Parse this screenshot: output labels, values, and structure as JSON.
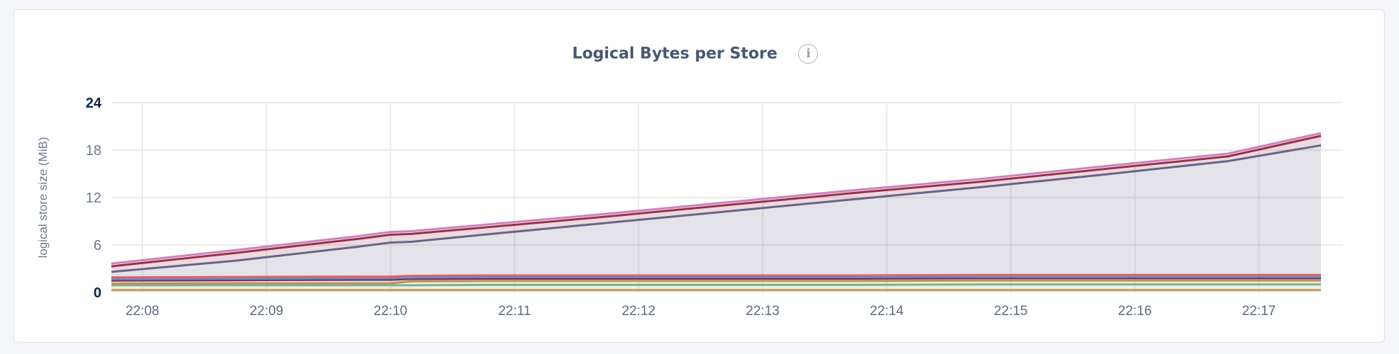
{
  "title": "Logical Bytes per Store",
  "info_icon": "info-circle-icon",
  "chart_data": {
    "type": "area",
    "stacked": true,
    "title": "Logical Bytes per Store",
    "ylabel": "logical store size (MiB)",
    "xlabel": "",
    "ylim": [
      0,
      24
    ],
    "yticks": [
      "0",
      "6",
      "12",
      "18",
      "24"
    ],
    "xticks": [
      "22:08",
      "22:09",
      "22:10",
      "22:11",
      "22:12",
      "22:13",
      "22:14",
      "22:15",
      "22:16",
      "22:17"
    ],
    "grid": true,
    "legend": "none",
    "x": [
      "22:07:45",
      "22:08:45",
      "22:09:45",
      "22:10:00",
      "22:10:10",
      "22:10:45",
      "22:11:45",
      "22:12:45",
      "22:13:45",
      "22:14:45",
      "22:15:45",
      "22:16:45",
      "22:17:30"
    ],
    "series": [
      {
        "color": "#c79a62",
        "values": [
          0.3,
          0.3,
          0.3,
          0.3,
          0.3,
          0.3,
          0.3,
          0.3,
          0.3,
          0.3,
          0.3,
          0.3,
          0.3
        ]
      },
      {
        "color": "#82b283",
        "values": [
          0.6,
          0.6,
          0.6,
          0.6,
          0.6,
          0.65,
          0.65,
          0.65,
          0.65,
          0.7,
          0.7,
          0.7,
          0.7
        ]
      },
      {
        "color": "#b8955a",
        "values": [
          0.2,
          0.25,
          0.25,
          0.25,
          0.5,
          0.5,
          0.5,
          0.5,
          0.5,
          0.5,
          0.5,
          0.5,
          0.5
        ]
      },
      {
        "color": "#7b2f64",
        "values": [
          0.4,
          0.4,
          0.45,
          0.45,
          0.3,
          0.3,
          0.3,
          0.3,
          0.3,
          0.3,
          0.3,
          0.3,
          0.3
        ]
      },
      {
        "color": "#6b8fc0",
        "values": [
          0.2,
          0.2,
          0.2,
          0.2,
          0.2,
          0.2,
          0.2,
          0.2,
          0.2,
          0.2,
          0.2,
          0.2,
          0.2
        ]
      },
      {
        "color": "#d9626a",
        "values": [
          0.2,
          0.2,
          0.2,
          0.2,
          0.2,
          0.2,
          0.2,
          0.2,
          0.2,
          0.2,
          0.2,
          0.2,
          0.2
        ]
      },
      {
        "color": "#6a6485",
        "values": [
          0.7,
          2.05,
          3.8,
          4.3,
          4.3,
          5.15,
          6.65,
          8.15,
          9.65,
          11.1,
          12.7,
          14.4,
          16.4
        ]
      },
      {
        "color": "#9b2f4b",
        "values": [
          0.7,
          1.0,
          1.0,
          1.0,
          1.0,
          0.9,
          0.8,
          0.8,
          0.8,
          0.7,
          0.7,
          0.6,
          1.2
        ]
      },
      {
        "color": "#c885be",
        "values": [
          0.35,
          0.35,
          0.35,
          0.35,
          0.35,
          0.35,
          0.35,
          0.35,
          0.35,
          0.35,
          0.35,
          0.35,
          0.35
        ]
      }
    ]
  }
}
